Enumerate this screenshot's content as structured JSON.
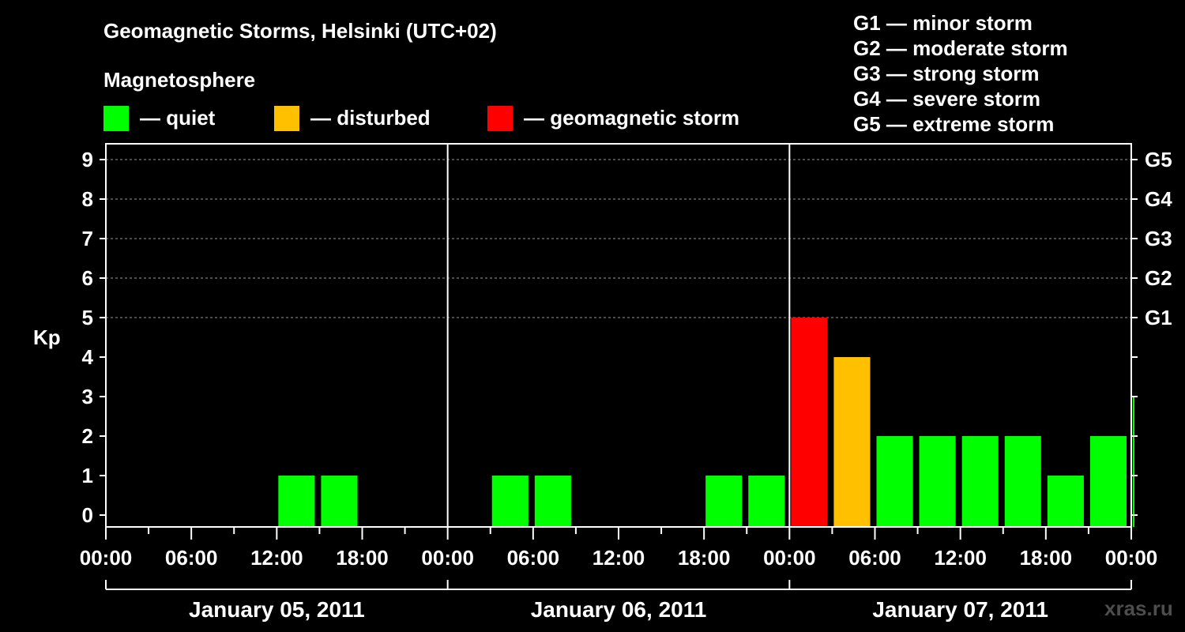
{
  "title": "Geomagnetic Storms, Helsinki (UTC+02)",
  "legend": {
    "heading": "Magnetosphere",
    "items": [
      {
        "label": "— quiet",
        "color": "#00ff00"
      },
      {
        "label": "— disturbed",
        "color": "#ffc000"
      },
      {
        "label": "— geomagnetic storm",
        "color": "#ff0000"
      }
    ]
  },
  "storm_scale": [
    "G1 — minor storm",
    "G2 — moderate storm",
    "G3 — strong storm",
    "G4 — severe storm",
    "G5 — extreme storm"
  ],
  "watermark": "xras.ru",
  "chart_data": {
    "type": "bar",
    "ylabel": "Kp",
    "ylim": [
      0,
      9
    ],
    "yticks": [
      0,
      1,
      2,
      3,
      4,
      5,
      6,
      7,
      8,
      9
    ],
    "g_ticks": [
      {
        "kp": 5,
        "label": "G1"
      },
      {
        "kp": 6,
        "label": "G2"
      },
      {
        "kp": 7,
        "label": "G3"
      },
      {
        "kp": 8,
        "label": "G4"
      },
      {
        "kp": 9,
        "label": "G5"
      }
    ],
    "x_tick_labels": [
      "00:00",
      "06:00",
      "12:00",
      "18:00",
      "00:00",
      "06:00",
      "12:00",
      "18:00",
      "00:00",
      "06:00",
      "12:00",
      "18:00",
      "00:00"
    ],
    "days": [
      "January 05, 2011",
      "January 06, 2011",
      "January 07, 2011"
    ],
    "grid": "dashed horizontal at Kp 5-9",
    "colors": {
      "quiet": "#00ff00",
      "disturbed": "#ffc000",
      "storm": "#ff0000"
    },
    "bars": [
      {
        "start_hour": 0,
        "kp": 0
      },
      {
        "start_hour": 3,
        "kp": 0
      },
      {
        "start_hour": 6,
        "kp": 0
      },
      {
        "start_hour": 9,
        "kp": 0
      },
      {
        "start_hour": 12,
        "kp": 1
      },
      {
        "start_hour": 15,
        "kp": 1
      },
      {
        "start_hour": 18,
        "kp": 0
      },
      {
        "start_hour": 21,
        "kp": 0
      },
      {
        "start_hour": 24,
        "kp": 0
      },
      {
        "start_hour": 27,
        "kp": 1
      },
      {
        "start_hour": 30,
        "kp": 1
      },
      {
        "start_hour": 33,
        "kp": 0
      },
      {
        "start_hour": 36,
        "kp": 0
      },
      {
        "start_hour": 39,
        "kp": 0
      },
      {
        "start_hour": 42,
        "kp": 1
      },
      {
        "start_hour": 45,
        "kp": 1
      },
      {
        "start_hour": 48,
        "kp": 5
      },
      {
        "start_hour": 51,
        "kp": 4
      },
      {
        "start_hour": 54,
        "kp": 2
      },
      {
        "start_hour": 57,
        "kp": 2
      },
      {
        "start_hour": 60,
        "kp": 2
      },
      {
        "start_hour": 63,
        "kp": 2
      },
      {
        "start_hour": 66,
        "kp": 1
      },
      {
        "start_hour": 69,
        "kp": 2
      },
      {
        "start_hour": 72,
        "kp": 3
      }
    ]
  }
}
